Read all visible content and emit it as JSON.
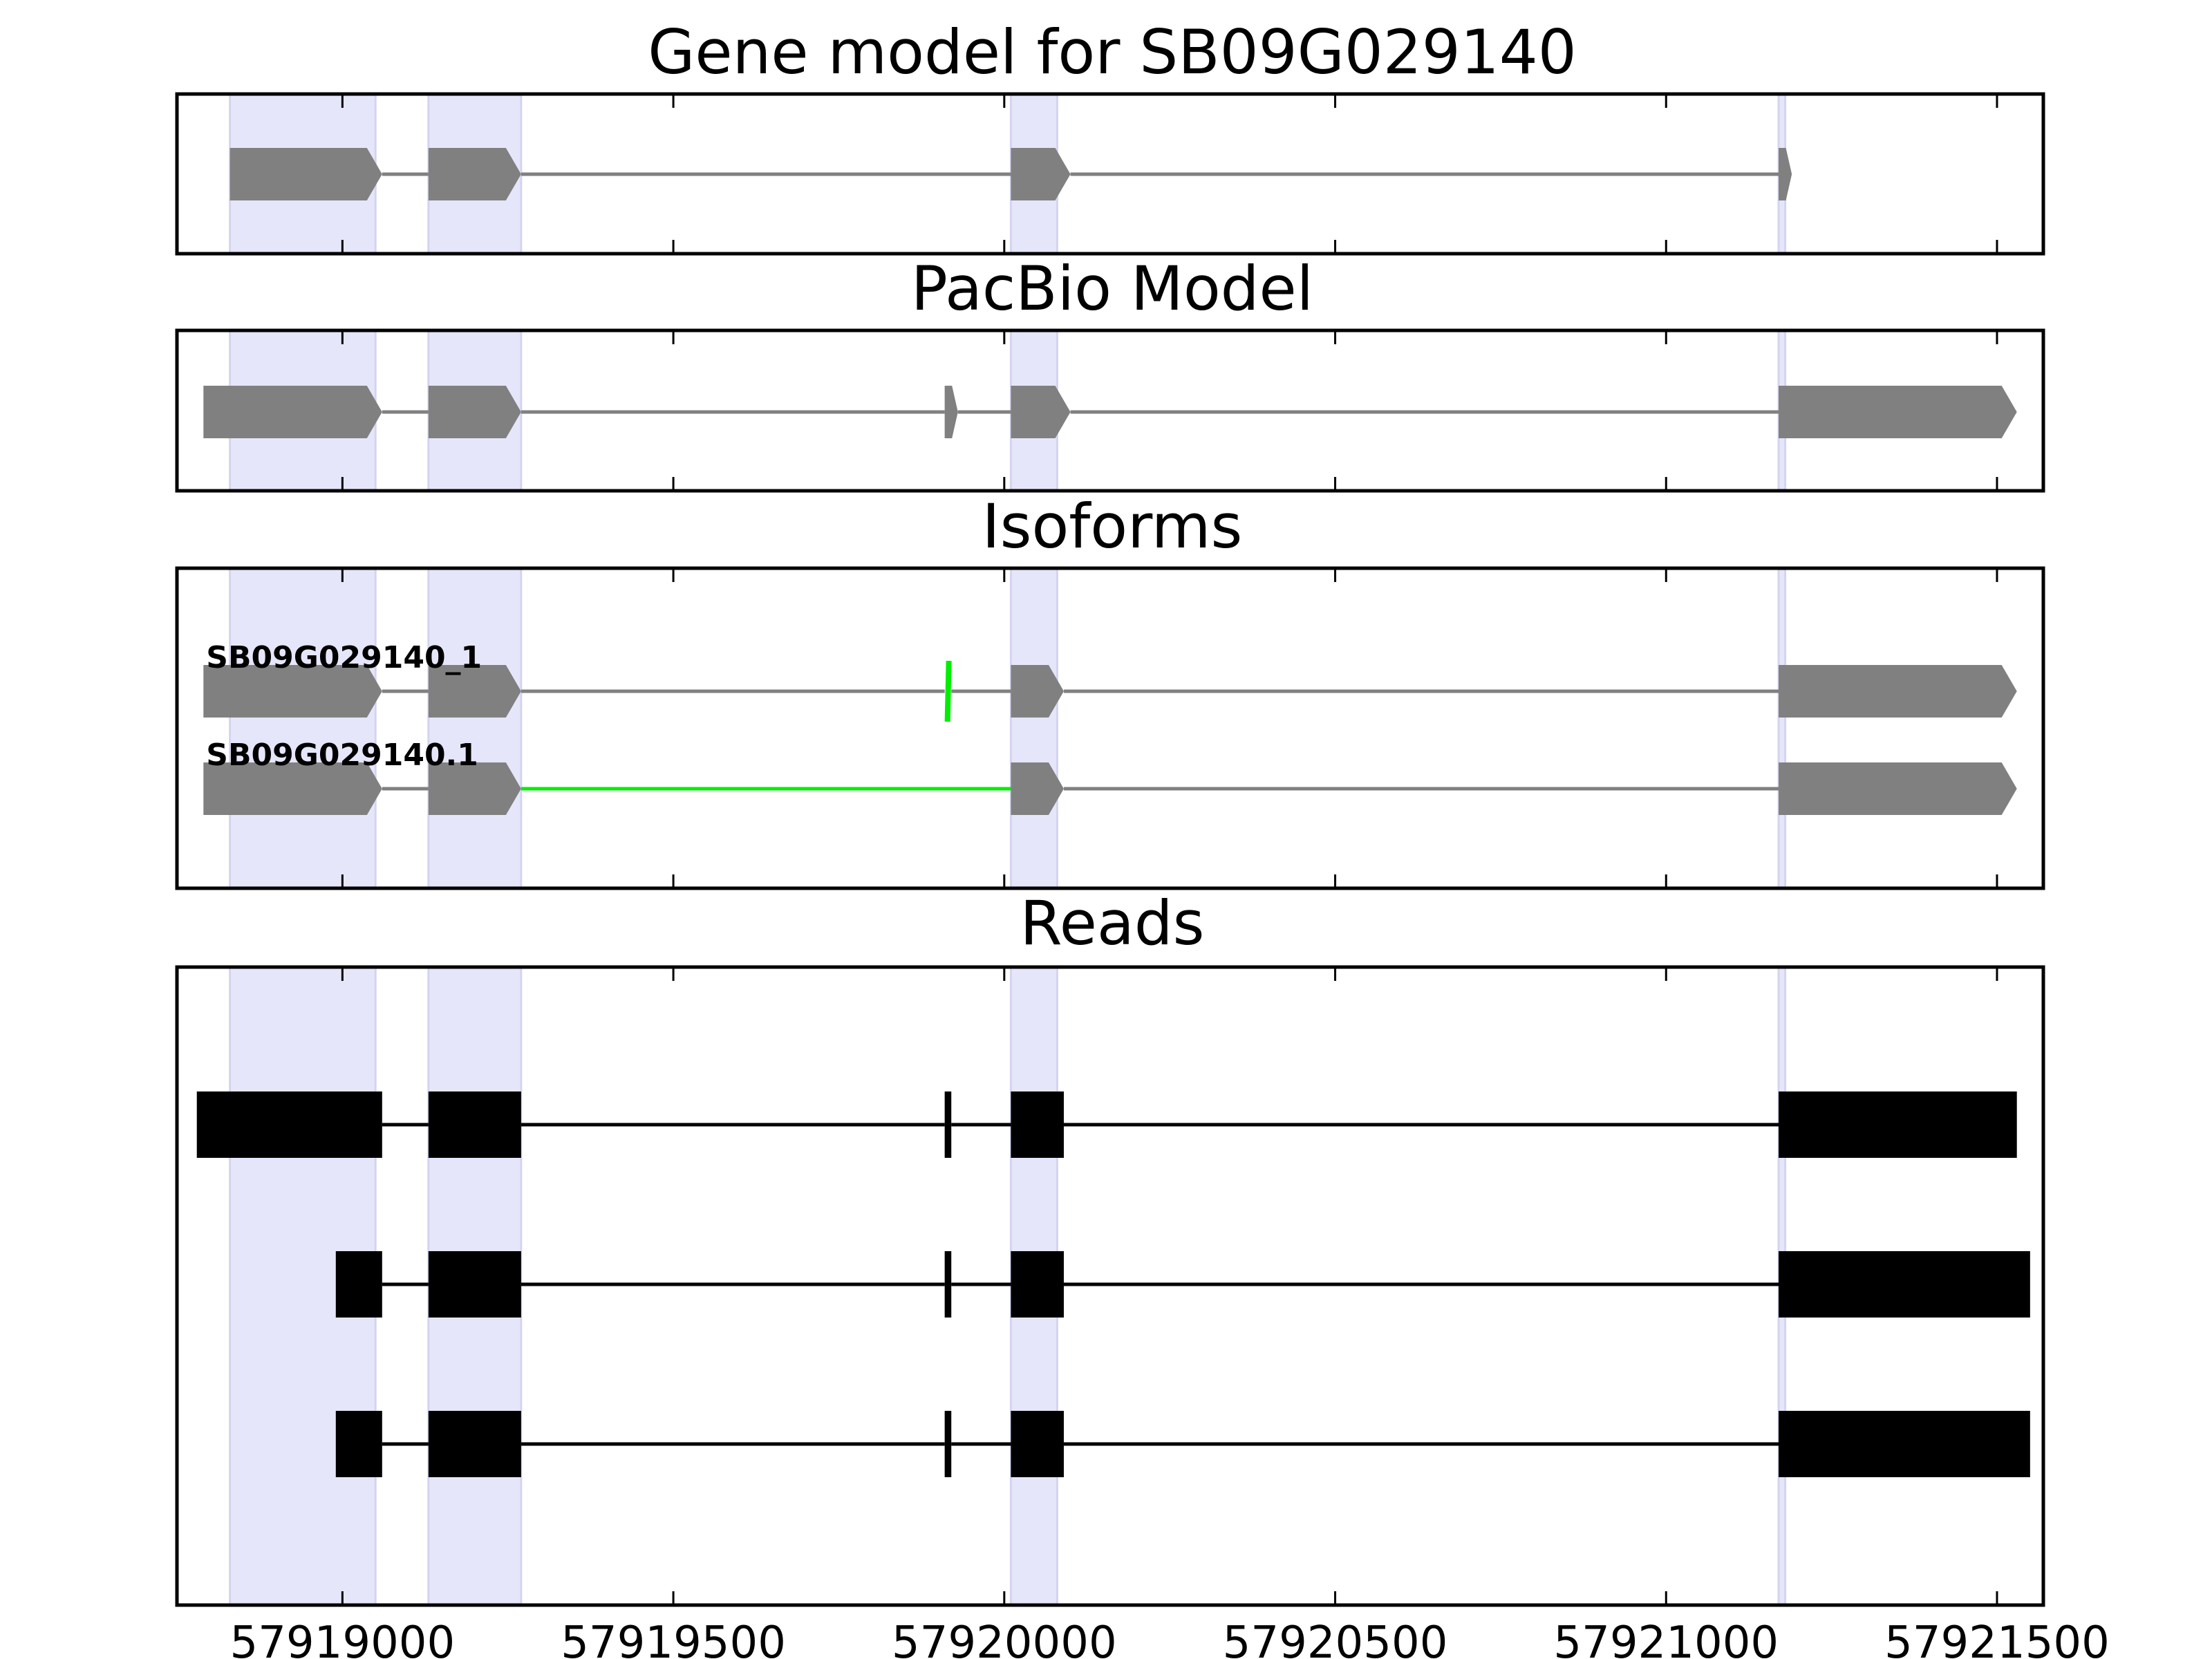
{
  "chart_data": {
    "type": "gene-structure",
    "xlim": [
      57918750,
      57921570
    ],
    "x_ticks": [
      57919000,
      57919500,
      57920000,
      57920500,
      57921000,
      57921500
    ],
    "highlight_regions": [
      [
        57918830,
        57919050
      ],
      [
        57919130,
        57919270
      ],
      [
        57920010,
        57920080
      ],
      [
        57921170,
        57921180
      ]
    ],
    "colors": {
      "highlight": "#e6e6fa",
      "model": "#808080",
      "intron": "#808080",
      "read": "#000000",
      "alt_splice": "#00ee00"
    },
    "panels": [
      {
        "title": "Gene model for SB09G029140",
        "kind": "model",
        "tracks": [
          {
            "label": "",
            "strand": "+",
            "exons": [
              [
                57918830,
                57919060
              ],
              [
                57919130,
                57919270
              ],
              [
                57920010,
                57920100
              ],
              [
                57921170,
                57921190
              ]
            ],
            "highlight_introns": [],
            "highlight_exons": []
          }
        ]
      },
      {
        "title": "PacBio Model",
        "kind": "model",
        "tracks": [
          {
            "label": "",
            "strand": "+",
            "exons": [
              [
                57918790,
                57919060
              ],
              [
                57919130,
                57919270
              ],
              [
                57919910,
                57919930
              ],
              [
                57920010,
                57920100
              ],
              [
                57921170,
                57921530
              ]
            ],
            "highlight_introns": [],
            "highlight_exons": []
          }
        ]
      },
      {
        "title": "Isoforms",
        "kind": "model",
        "tracks": [
          {
            "label": "SB09G029140_1",
            "strand": "+",
            "exons": [
              [
                57918790,
                57919060
              ],
              [
                57919130,
                57919270
              ],
              [
                57919910,
                57919920
              ],
              [
                57920010,
                57920090
              ],
              [
                57921170,
                57921530
              ]
            ],
            "highlight_introns": [],
            "highlight_exons": [
              2
            ]
          },
          {
            "label": "SB09G029140.1",
            "strand": "+",
            "exons": [
              [
                57918790,
                57919060
              ],
              [
                57919130,
                57919270
              ],
              [
                57920010,
                57920090
              ],
              [
                57921170,
                57921530
              ]
            ],
            "highlight_introns": [
              1
            ],
            "highlight_exons": []
          }
        ]
      },
      {
        "title": "Reads",
        "kind": "reads",
        "tracks": [
          {
            "label": "",
            "exons": [
              [
                57918780,
                57919060
              ],
              [
                57919130,
                57919270
              ],
              [
                57919910,
                57919920
              ],
              [
                57920010,
                57920090
              ],
              [
                57921170,
                57921530
              ]
            ]
          },
          {
            "label": "",
            "exons": [
              [
                57918990,
                57919060
              ],
              [
                57919130,
                57919270
              ],
              [
                57919910,
                57919920
              ],
              [
                57920010,
                57920090
              ],
              [
                57921170,
                57921550
              ]
            ]
          },
          {
            "label": "",
            "exons": [
              [
                57918990,
                57919060
              ],
              [
                57919130,
                57919270
              ],
              [
                57919910,
                57919920
              ],
              [
                57920010,
                57920090
              ],
              [
                57921170,
                57921550
              ]
            ]
          }
        ]
      }
    ]
  }
}
